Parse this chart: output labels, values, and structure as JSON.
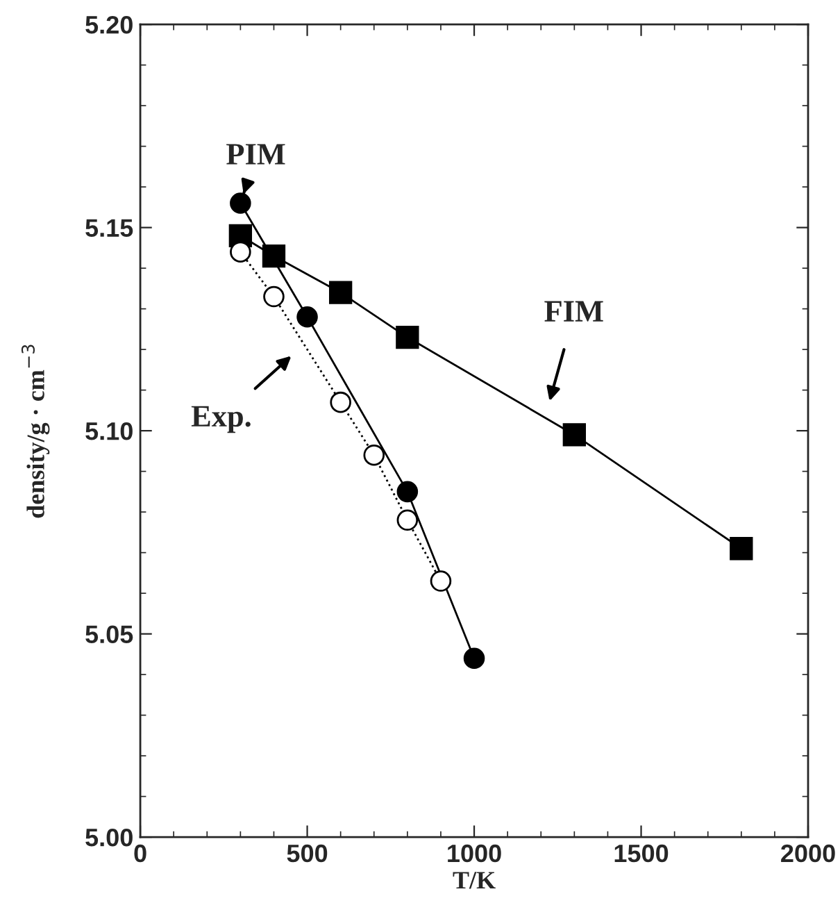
{
  "chart_data": {
    "type": "line",
    "xlabel": "T/K",
    "ylabel": "density/g · cm$^{−3}$",
    "xlim": [
      0,
      2000
    ],
    "xticks": [
      0,
      500,
      1000,
      1500,
      2000
    ],
    "ylim": [
      5.0,
      5.2
    ],
    "yticks": [
      {
        "value": 5.0,
        "label": "5.00"
      },
      {
        "value": 5.05,
        "label": "5.05"
      },
      {
        "value": 5.1,
        "label": "5.10"
      },
      {
        "value": 5.15,
        "label": "5.15"
      },
      {
        "value": 5.2,
        "label": "5.20"
      }
    ],
    "grid": false,
    "legend": false,
    "series": [
      {
        "color": "#000000",
        "marker": "circle",
        "line_style": "solid",
        "x": [
          300,
          500,
          800,
          1000
        ],
        "values": [
          5.156,
          5.128,
          5.085,
          5.044
        ]
      },
      {
        "color": "#000000",
        "marker": "square",
        "line_style": "solid",
        "x": [
          300,
          400,
          600,
          800,
          1300,
          1800
        ],
        "values": [
          5.148,
          5.143,
          5.134,
          5.123,
          5.099,
          5.071
        ]
      },
      {
        "color": "#000000",
        "marker": "circle",
        "line_style": "dotted",
        "x": [
          300,
          400,
          600,
          700,
          800,
          900
        ],
        "values": [
          5.144,
          5.133,
          5.107,
          5.094,
          5.078,
          5.063
        ]
      }
    ],
    "annotations": [
      {
        "text": "PIM",
        "x": 300,
        "y": 5.156
      },
      {
        "text": "Exp.",
        "x": 474,
        "y": 5.12
      },
      {
        "text": "FIM",
        "x": 1218,
        "y": 5.105
      }
    ]
  }
}
